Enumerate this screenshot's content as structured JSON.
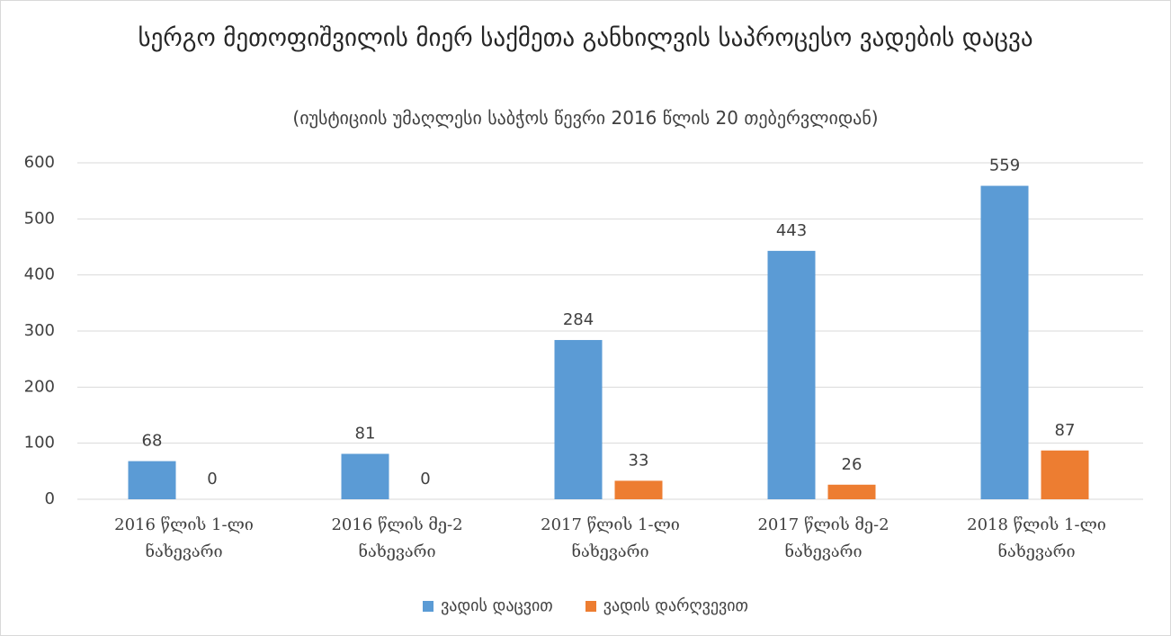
{
  "chart_data": {
    "type": "bar",
    "title": "სერგო მეთოფიშვილის მიერ საქმეთა განხილვის საპროცესო ვადების დაცვა",
    "subtitle": "(იუსტიციის უმაღლესი საბჭოს წევრი 2016 წლის 20 თებერვლიდან)",
    "categories": [
      "2016 წლის 1-ლი ნახევარი",
      "2016 წლის მე-2 ნახევარი",
      "2017 წლის 1-ლი ნახევარი",
      "2017 წლის მე-2 ნახევარი",
      "2018 წლის 1-ლი ნახევარი"
    ],
    "series": [
      {
        "name": "ვადის დაცვით",
        "color": "#5b9bd5",
        "values": [
          68,
          81,
          284,
          443,
          559
        ]
      },
      {
        "name": "ვადის დარღვევით",
        "color": "#ed7d31",
        "values": [
          0,
          0,
          33,
          26,
          87
        ]
      }
    ],
    "ylim": [
      0,
      600
    ],
    "yticks": [
      0,
      100,
      200,
      300,
      400,
      500,
      600
    ],
    "grid": true,
    "legend": "bottom"
  }
}
